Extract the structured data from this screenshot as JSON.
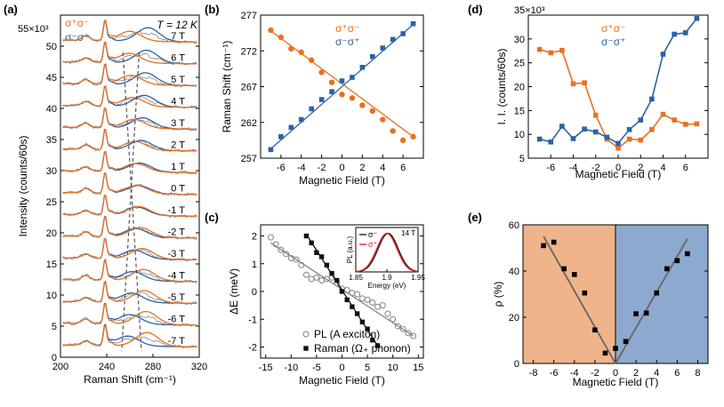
{
  "colors": {
    "orange": "#e8711f",
    "blue": "#2c61a8",
    "gray": "#808080",
    "dark": "#111111",
    "bg_left": "#f0b48a",
    "bg_right": "#8ea9cf",
    "raw_gray": "#8a8a8a",
    "inset_red": "#e0242a"
  },
  "chart_data": [
    {
      "id": "a",
      "panel_label": "(a)",
      "type": "line",
      "title": "T = 12 K",
      "xlabel": "Raman Shift (cm⁻¹)",
      "ylabel": "Intensity (counts/60s)",
      "y_multiplier": "55×10³",
      "xlim": [
        200,
        320
      ],
      "ylim": [
        0,
        55
      ],
      "xticks": [
        200,
        240,
        280,
        320
      ],
      "yticks": [
        0,
        5,
        10,
        15,
        20,
        25,
        30,
        35,
        40,
        45,
        50
      ],
      "legend": [
        "σ⁺σ⁻",
        "σ⁻σ⁺"
      ],
      "field_labels": [
        "-7 T",
        "-6 T",
        "-5 T",
        "-4 T",
        "-3 T",
        "-2 T",
        "-1 T",
        "0 T",
        "1 T",
        "2 T",
        "3 T",
        "4 T",
        "5 T",
        "6 T",
        "7 T"
      ],
      "baselines": [
        1.5,
        5.0,
        8.5,
        12.0,
        15.5,
        19.0,
        22.5,
        26.0,
        29.5,
        33.0,
        36.5,
        40.0,
        43.5,
        47.0,
        50.5
      ],
      "peak_positions_sp_sm": [
        274.9,
        273.9,
        272.3,
        271.8,
        270.7,
        269.0,
        267.6,
        265.9,
        265.4,
        264.4,
        263.6,
        262.4,
        260.8,
        259.5,
        260.0
      ],
      "peak_positions_sm_sp": [
        258.2,
        260.0,
        261.3,
        262.4,
        263.9,
        265.2,
        266.3,
        267.8,
        268.3,
        269.7,
        271.2,
        272.4,
        273.6,
        274.4,
        275.8
      ]
    },
    {
      "id": "b",
      "panel_label": "(b)",
      "type": "scatter",
      "xlabel": "Magnetic Field (T)",
      "ylabel": "Raman Shift (cm⁻¹)",
      "xlim": [
        -8,
        8
      ],
      "ylim": [
        257,
        277
      ],
      "xticks": [
        -6,
        -4,
        -2,
        0,
        2,
        4,
        6
      ],
      "yticks": [
        257,
        262,
        267,
        272,
        277
      ],
      "x": [
        -7,
        -6,
        -5,
        -4,
        -3,
        -2,
        -1,
        0,
        1,
        2,
        3,
        4,
        5,
        6,
        7
      ],
      "series": [
        {
          "name": "σ⁺σ⁻",
          "color_key": "orange",
          "marker": "circle",
          "values": [
            274.9,
            273.9,
            272.3,
            271.8,
            270.7,
            269.0,
            267.6,
            265.9,
            265.4,
            264.4,
            263.6,
            262.4,
            260.8,
            259.5,
            260.0
          ],
          "fit": [
            274.8,
            260.0
          ]
        },
        {
          "name": "σ⁻σ⁺",
          "color_key": "blue",
          "marker": "square",
          "values": [
            258.2,
            260.0,
            261.3,
            262.4,
            263.9,
            265.2,
            266.3,
            267.8,
            268.3,
            269.7,
            271.2,
            272.4,
            273.6,
            274.4,
            275.8
          ],
          "fit": [
            258.3,
            275.7
          ]
        }
      ]
    },
    {
      "id": "c",
      "panel_label": "(c)",
      "type": "scatter",
      "xlabel": "Magnetic Field (T)",
      "ylabel": "ΔE (meV)",
      "xlim": [
        -16,
        16
      ],
      "ylim": [
        -2.4,
        2.4
      ],
      "xticks": [
        -15,
        -10,
        -5,
        0,
        5,
        10,
        15
      ],
      "yticks": [
        -2,
        -1,
        0,
        1,
        2
      ],
      "series": [
        {
          "name": "PL (A exciton)",
          "color_key": "gray",
          "marker": "open-circle",
          "x": [
            -14,
            -13,
            -12,
            -11,
            -10,
            -9,
            -8,
            -7,
            -6,
            -5,
            -4,
            -3,
            -2,
            -1,
            0,
            1,
            2,
            3,
            4,
            5,
            6,
            7,
            8,
            9,
            10,
            11,
            12,
            13,
            14
          ],
          "values": [
            1.95,
            1.7,
            1.5,
            1.35,
            1.2,
            1.15,
            0.95,
            0.6,
            0.45,
            0.5,
            0.4,
            0.45,
            0.5,
            0.3,
            0.1,
            0.05,
            -0.05,
            -0.1,
            -0.25,
            -0.3,
            -0.4,
            -0.55,
            -0.5,
            -0.8,
            -1.0,
            -1.25,
            -1.35,
            -1.5,
            -1.6
          ],
          "fit_x": [
            -14,
            14
          ],
          "fit": [
            1.75,
            -1.6
          ]
        },
        {
          "name": "Raman (Ω₊ phonon)",
          "color_key": "dark",
          "marker": "square",
          "x": [
            -7,
            -6,
            -5,
            -4,
            -3,
            -2,
            -1,
            0,
            1,
            2,
            3,
            4,
            5,
            6,
            7
          ],
          "values": [
            2.0,
            1.75,
            1.4,
            1.25,
            0.95,
            0.65,
            0.4,
            0.0,
            -0.3,
            -0.55,
            -0.8,
            -1.1,
            -1.35,
            -1.75,
            -1.95
          ],
          "fit_x": [
            -7,
            7
          ],
          "fit": [
            2.05,
            -1.95
          ]
        }
      ],
      "inset": {
        "label": "14 T",
        "xlabel": "Energy (eV)",
        "ylabel": "PL (a.u.)",
        "xticks": [
          1.85,
          1.9,
          1.95
        ],
        "xlim": [
          1.85,
          1.95
        ],
        "center_sm": 1.902,
        "center_sp": 1.9,
        "sigma": 0.016,
        "legend": [
          "σ⁻",
          "σ⁺"
        ]
      }
    },
    {
      "id": "d",
      "panel_label": "(d)",
      "type": "line",
      "xlabel": "Magnetic Field (T)",
      "ylabel": "I. I. (counts/60s)",
      "y_multiplier": "35×10³",
      "xlim": [
        -8,
        8
      ],
      "ylim": [
        5,
        35
      ],
      "xticks": [
        -6,
        -4,
        -2,
        0,
        2,
        4,
        6
      ],
      "yticks": [
        5,
        10,
        15,
        20,
        25,
        30
      ],
      "x": [
        -7,
        -6,
        -5,
        -4,
        -3,
        -2,
        -1,
        0,
        1,
        2,
        3,
        4,
        5,
        6,
        7
      ],
      "series": [
        {
          "name": "σ⁺σ⁻",
          "color_key": "orange",
          "marker": "square",
          "values": [
            27.8,
            27.1,
            27.6,
            20.6,
            20.8,
            14.0,
            9.0,
            7.1,
            9.0,
            8.8,
            11.0,
            14.2,
            13.0,
            12.1,
            12.2
          ]
        },
        {
          "name": "σ⁻σ⁺",
          "color_key": "blue",
          "marker": "square",
          "values": [
            9.0,
            8.4,
            11.7,
            9.1,
            11.1,
            10.5,
            9.4,
            8.1,
            11.0,
            13.0,
            17.4,
            26.8,
            31.0,
            31.3,
            34.3
          ]
        }
      ]
    },
    {
      "id": "e",
      "panel_label": "(e)",
      "type": "scatter",
      "xlabel": "Magnetic Field (T)",
      "ylabel": "ρ (%)",
      "xlim": [
        -9,
        9
      ],
      "ylim": [
        0,
        60
      ],
      "xticks": [
        -8,
        -6,
        -4,
        -2,
        0,
        2,
        4,
        6,
        8
      ],
      "yticks": [
        0,
        20,
        40,
        60
      ],
      "x": [
        -7,
        -6,
        -5,
        -4,
        -3,
        -2,
        -1,
        0,
        1,
        2,
        3,
        4,
        5,
        6,
        7
      ],
      "values": [
        51.0,
        52.5,
        41.0,
        38.5,
        30.5,
        14.5,
        4.5,
        6.5,
        9.5,
        21.5,
        21.8,
        30.5,
        41.0,
        44.5,
        47.5
      ],
      "fit_lines": [
        {
          "x": [
            -7,
            0
          ],
          "y": [
            55,
            0
          ]
        },
        {
          "x": [
            0,
            7
          ],
          "y": [
            0,
            54
          ]
        }
      ]
    }
  ]
}
